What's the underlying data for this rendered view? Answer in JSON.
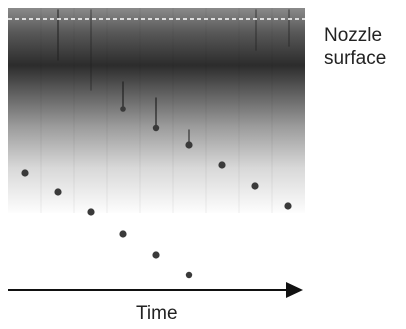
{
  "labels": {
    "nozzle_line1": "Nozzle",
    "nozzle_line2": "surface",
    "time": "Time"
  },
  "colors": {
    "droplet": "#3a3a3a",
    "nozzle_line": "#ffffff",
    "axis": "#111111",
    "text": "#222222"
  },
  "frames": 9,
  "icons": {
    "time_arrow": "right-arrow-icon"
  }
}
